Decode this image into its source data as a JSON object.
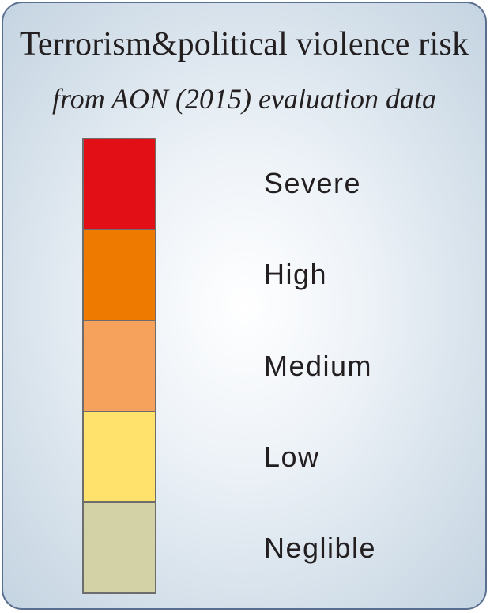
{
  "legend": {
    "title": "Terrorism&political violence risk",
    "subtitle": "from AON (2015) evaluation data",
    "levels": [
      {
        "label": "Severe",
        "color": "#e30f17"
      },
      {
        "label": "High",
        "color": "#ef7a00"
      },
      {
        "label": "Medium",
        "color": "#f6a25d"
      },
      {
        "label": "Low",
        "color": "#ffe26b"
      },
      {
        "label": "Neglible",
        "color": "#d3d1a6"
      }
    ]
  }
}
